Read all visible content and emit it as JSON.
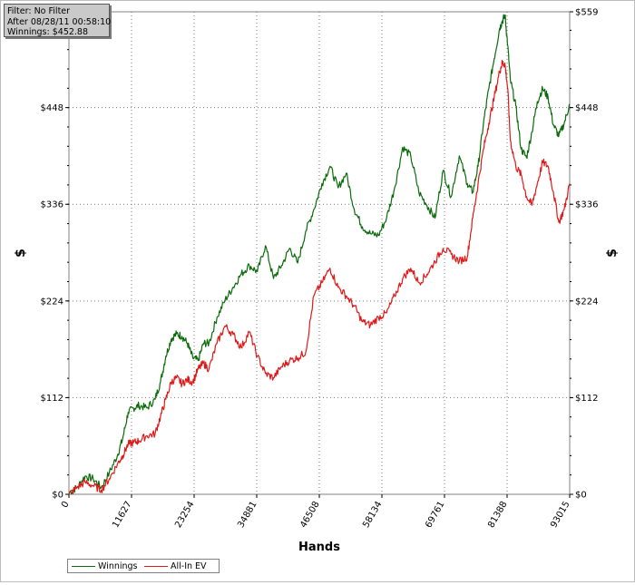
{
  "info_box": {
    "filter": "Filter: No Filter",
    "after": "After 08/28/11 00:58:10",
    "winnings": "Winnings: $452.88"
  },
  "chart_data": {
    "type": "line",
    "title": "",
    "xlabel": "Hands",
    "ylabel": "$",
    "xlim": [
      0,
      93015
    ],
    "ylim": [
      0,
      559
    ],
    "x_ticks": [
      0,
      11627,
      23254,
      34881,
      46508,
      58134,
      69761,
      81388,
      93015
    ],
    "y_ticks": [
      0,
      112,
      224,
      336,
      448,
      559
    ],
    "y_tick_labels": [
      "$0",
      "$112",
      "$224",
      "$336",
      "$448",
      "$559"
    ],
    "grid": true,
    "legend_position": "bottom-left",
    "series": [
      {
        "name": "Winnings",
        "color": "#0a6b0a",
        "x": [
          0,
          1500,
          3000,
          4500,
          6000,
          7500,
          9000,
          10000,
          11000,
          12000,
          13000,
          14500,
          16000,
          17000,
          18000,
          19000,
          20000,
          21000,
          22000,
          23000,
          24000,
          25000,
          26000,
          27500,
          29000,
          30500,
          32000,
          33500,
          35000,
          36500,
          38000,
          39500,
          41000,
          42500,
          44000,
          45500,
          47000,
          48500,
          50000,
          51500,
          53000,
          54500,
          56000,
          57500,
          59000,
          60500,
          62000,
          63500,
          65000,
          66500,
          68000,
          69500,
          71000,
          72500,
          74000,
          75000,
          76000,
          77000,
          78000,
          79000,
          80000,
          80500,
          81000,
          81500,
          82000,
          83000,
          84000,
          85000,
          86000,
          87000,
          88000,
          89000,
          90000,
          91000,
          92000,
          93015
        ],
        "values": [
          2,
          8,
          21,
          18,
          8,
          25,
          45,
          65,
          95,
          100,
          103,
          100,
          110,
          130,
          160,
          180,
          186,
          183,
          175,
          158,
          155,
          175,
          175,
          205,
          225,
          240,
          255,
          265,
          258,
          288,
          250,
          265,
          285,
          268,
          305,
          330,
          360,
          380,
          355,
          372,
          330,
          310,
          302,
          300,
          320,
          355,
          402,
          392,
          350,
          335,
          320,
          375,
          345,
          392,
          360,
          350,
          380,
          430,
          470,
          505,
          540,
          548,
          555,
          520,
          480,
          450,
          400,
          390,
          420,
          455,
          470,
          460,
          428,
          415,
          430,
          452
        ]
      },
      {
        "name": "All-In EV",
        "color": "#e01818",
        "x": [
          0,
          1500,
          3000,
          4500,
          6000,
          7500,
          9000,
          10000,
          11000,
          12000,
          13000,
          14500,
          16000,
          17000,
          18000,
          19000,
          20000,
          21000,
          22000,
          23000,
          24000,
          25000,
          26000,
          27500,
          29000,
          30500,
          32000,
          33500,
          35000,
          36500,
          38000,
          39500,
          41000,
          42500,
          44000,
          45500,
          47000,
          48500,
          50000,
          51500,
          53000,
          54500,
          56000,
          57500,
          59000,
          60500,
          62000,
          63500,
          65000,
          66500,
          68000,
          69500,
          71000,
          72500,
          74000,
          75000,
          76000,
          77000,
          78000,
          79000,
          80000,
          80500,
          81000,
          81500,
          82000,
          83000,
          84000,
          85000,
          86000,
          87000,
          88000,
          89000,
          90000,
          91000,
          92000,
          93015
        ],
        "values": [
          0,
          8,
          14,
          10,
          5,
          18,
          35,
          45,
          58,
          60,
          62,
          68,
          70,
          90,
          110,
          130,
          135,
          128,
          133,
          130,
          145,
          152,
          145,
          175,
          195,
          185,
          170,
          188,
          160,
          140,
          135,
          148,
          155,
          158,
          165,
          230,
          245,
          262,
          240,
          230,
          218,
          200,
          196,
          205,
          210,
          230,
          250,
          262,
          245,
          255,
          270,
          285,
          278,
          270,
          275,
          320,
          360,
          400,
          430,
          460,
          490,
          500,
          498,
          470,
          410,
          380,
          370,
          345,
          335,
          360,
          385,
          380,
          350,
          315,
          330,
          360
        ]
      }
    ]
  }
}
